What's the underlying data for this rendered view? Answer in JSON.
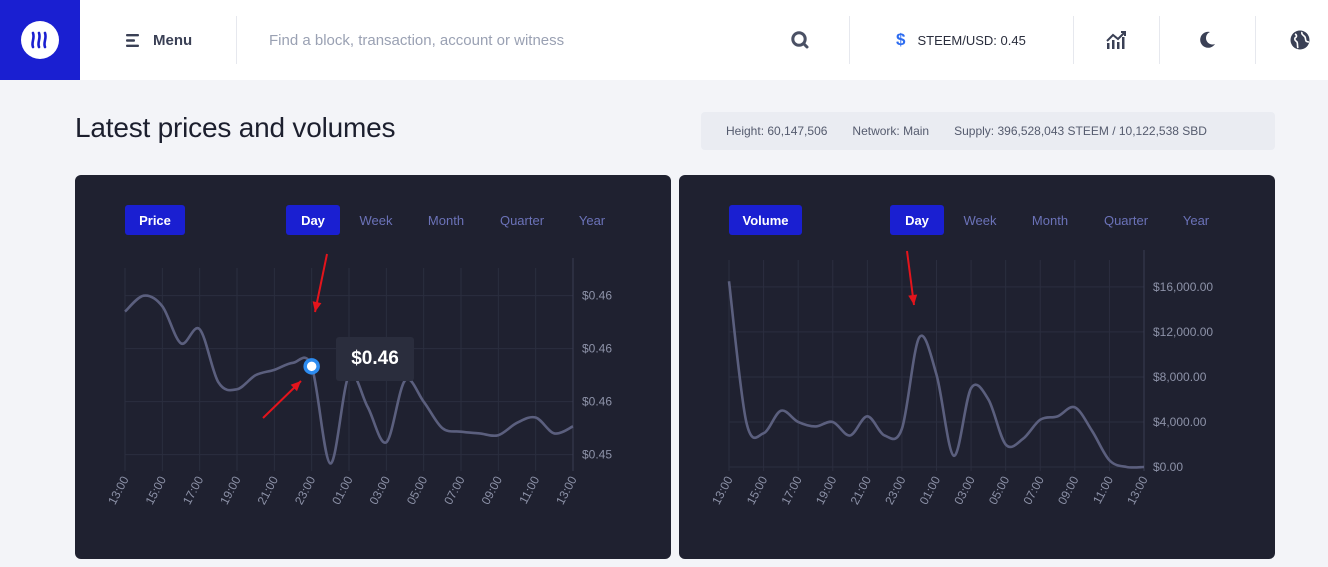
{
  "header": {
    "menu_label": "Menu",
    "search_placeholder": "Find a block, transaction, account or witness",
    "price_symbol": "$",
    "price_ticker": "STEEM/USD: 0.45"
  },
  "page": {
    "title": "Latest prices and volumes",
    "stats": {
      "height": "Height: 60,147,506",
      "network": "Network: Main",
      "supply": "Supply: 396,528,043 STEEM / 10,122,538 SBD"
    }
  },
  "colors": {
    "brand": "#1a1fd1",
    "panel_bg": "#1f2130",
    "line": "#5b5f7e",
    "marker": "#2d8cf0",
    "annotation_arrow": "#e3141c"
  },
  "price_panel": {
    "toggle_label": "Price",
    "tabs": [
      "Day",
      "Week",
      "Month",
      "Quarter",
      "Year"
    ],
    "active_tab": "Day",
    "tooltip": "$0.46"
  },
  "volume_panel": {
    "toggle_label": "Volume",
    "tabs": [
      "Day",
      "Week",
      "Month",
      "Quarter",
      "Year"
    ],
    "active_tab": "Day"
  },
  "chart_data": [
    {
      "type": "line",
      "title": "",
      "x": [
        "13:00",
        "14:00",
        "15:00",
        "16:00",
        "17:00",
        "18:00",
        "19:00",
        "20:00",
        "21:00",
        "22:00",
        "23:00",
        "00:00",
        "01:00",
        "02:00",
        "03:00",
        "04:00",
        "05:00",
        "06:00",
        "07:00",
        "08:00",
        "09:00",
        "10:00",
        "11:00",
        "12:00",
        "13:00"
      ],
      "x_tick_labels": [
        "13:00",
        "15:00",
        "17:00",
        "19:00",
        "21:00",
        "23:00",
        "01:00",
        "03:00",
        "05:00",
        "07:00",
        "09:00",
        "11:00",
        "13:00"
      ],
      "y_tick_labels": [
        "$0.46",
        "$0.46",
        "$0.46",
        "$0.45"
      ],
      "y_tick_values": [
        0.4645,
        0.4615,
        0.4585,
        0.4555
      ],
      "ylim": [
        0.4548,
        0.4655
      ],
      "series": [
        {
          "values": [
            0.4636,
            0.4645,
            0.4639,
            0.4618,
            0.4626,
            0.4596,
            0.4592,
            0.46,
            0.4603,
            0.4607,
            0.4605,
            0.455,
            0.46,
            0.4582,
            0.4562,
            0.4597,
            0.4585,
            0.457,
            0.4568,
            0.4567,
            0.4566,
            0.4573,
            0.4576,
            0.4567,
            0.4571
          ]
        }
      ],
      "highlight": {
        "x": "23:00",
        "label": "$0.46"
      },
      "grid": true
    },
    {
      "type": "line",
      "title": "",
      "x": [
        "13:00",
        "14:00",
        "15:00",
        "16:00",
        "17:00",
        "18:00",
        "19:00",
        "20:00",
        "21:00",
        "22:00",
        "23:00",
        "00:00",
        "01:00",
        "02:00",
        "03:00",
        "04:00",
        "05:00",
        "06:00",
        "07:00",
        "08:00",
        "09:00",
        "10:00",
        "11:00",
        "12:00",
        "13:00"
      ],
      "x_tick_labels": [
        "13:00",
        "15:00",
        "17:00",
        "19:00",
        "21:00",
        "23:00",
        "01:00",
        "03:00",
        "05:00",
        "07:00",
        "09:00",
        "11:00",
        "13:00"
      ],
      "y_tick_labels": [
        "$16,000.00",
        "$12,000.00",
        "$8,000.00",
        "$4,000.00",
        "$0.00"
      ],
      "y_tick_values": [
        16000,
        12000,
        8000,
        4000,
        0
      ],
      "ylim": [
        0,
        17500
      ],
      "series": [
        {
          "values": [
            16500,
            4000,
            3000,
            5000,
            4000,
            3600,
            4000,
            2800,
            4500,
            2800,
            3400,
            11500,
            8200,
            1000,
            7000,
            6000,
            2000,
            2500,
            4200,
            4500,
            5300,
            3200,
            600,
            0,
            0
          ]
        }
      ],
      "grid": true
    }
  ]
}
